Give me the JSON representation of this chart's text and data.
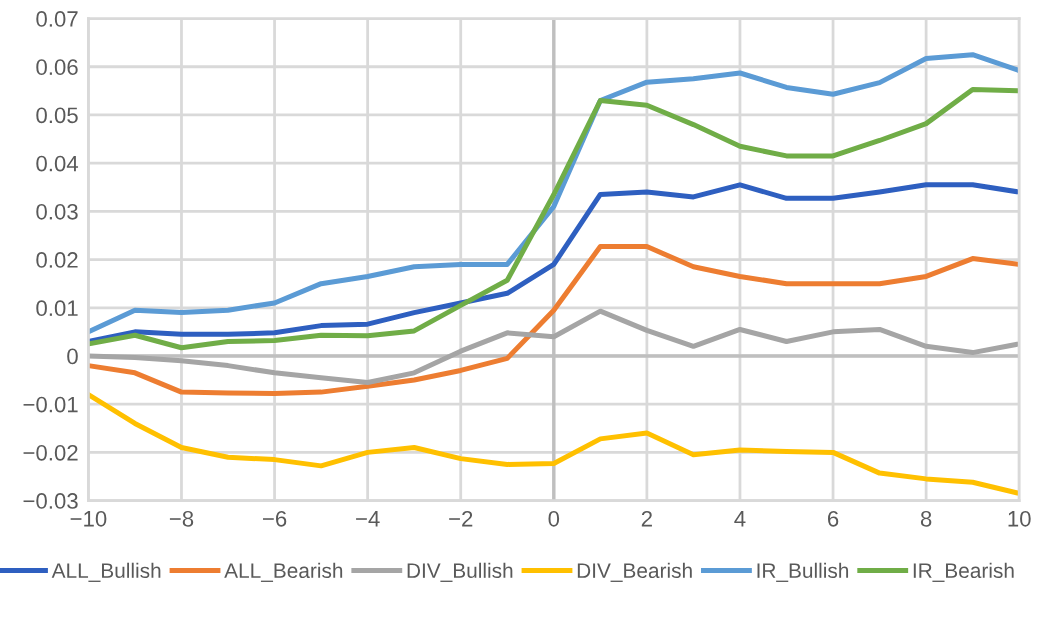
{
  "chart_data": {
    "type": "line",
    "x": [
      -10,
      -9,
      -8,
      -7,
      -6,
      -5,
      -4,
      -3,
      -2,
      -1,
      0,
      1,
      2,
      3,
      4,
      5,
      6,
      7,
      8,
      9,
      10
    ],
    "series": [
      {
        "name": "ALL_Bullish",
        "color": "#2e5fc0",
        "values": [
          0.003,
          0.005,
          0.0045,
          0.0045,
          0.0048,
          0.0063,
          0.0066,
          0.009,
          0.011,
          0.013,
          0.019,
          0.0335,
          0.034,
          0.033,
          0.0355,
          0.0327,
          0.0327,
          0.034,
          0.0355,
          0.0355,
          0.034
        ]
      },
      {
        "name": "ALL_Bearish",
        "color": "#ed7d31",
        "values": [
          -0.002,
          -0.0035,
          -0.0075,
          -0.0077,
          -0.0078,
          -0.0075,
          -0.0063,
          -0.005,
          -0.003,
          -0.0005,
          0.0095,
          0.0227,
          0.0227,
          0.0185,
          0.0165,
          0.015,
          0.015,
          0.015,
          0.0165,
          0.0202,
          0.019
        ]
      },
      {
        "name": "DIV_Bullish",
        "color": "#a5a5a5",
        "values": [
          0.0,
          -0.0003,
          -0.001,
          -0.002,
          -0.0035,
          -0.0045,
          -0.0055,
          -0.0035,
          0.001,
          0.0048,
          0.004,
          0.0093,
          0.0053,
          0.002,
          0.0055,
          0.003,
          0.005,
          0.0055,
          0.002,
          0.0007,
          0.0025
        ]
      },
      {
        "name": "DIV_Bearish",
        "color": "#ffc000",
        "values": [
          -0.008,
          -0.014,
          -0.019,
          -0.021,
          -0.0215,
          -0.0228,
          -0.02,
          -0.019,
          -0.0213,
          -0.0225,
          -0.0223,
          -0.0172,
          -0.016,
          -0.0205,
          -0.0195,
          -0.0198,
          -0.02,
          -0.0243,
          -0.0255,
          -0.0262,
          -0.0285
        ]
      },
      {
        "name": "IR_Bullish",
        "color": "#5b9bd5",
        "values": [
          0.005,
          0.0095,
          0.009,
          0.0095,
          0.011,
          0.015,
          0.0165,
          0.0185,
          0.019,
          0.019,
          0.031,
          0.053,
          0.0568,
          0.0575,
          0.0587,
          0.0557,
          0.0543,
          0.0567,
          0.0617,
          0.0625,
          0.0592
        ]
      },
      {
        "name": "IR_Bearish",
        "color": "#70ad47",
        "values": [
          0.0025,
          0.0043,
          0.0017,
          0.003,
          0.0032,
          0.0043,
          0.0042,
          0.0052,
          0.0105,
          0.0157,
          0.0335,
          0.053,
          0.052,
          0.048,
          0.0435,
          0.0415,
          0.0415,
          0.0447,
          0.0482,
          0.0553,
          0.055
        ]
      }
    ],
    "xlim": [
      -10,
      10
    ],
    "xticks": [
      -10,
      -8,
      -6,
      -4,
      -2,
      0,
      2,
      4,
      6,
      8,
      10
    ],
    "ylim": [
      -0.03,
      0.07
    ],
    "yticks": [
      -0.03,
      -0.02,
      -0.01,
      0,
      0.01,
      0.02,
      0.03,
      0.04,
      0.05,
      0.06,
      0.07
    ],
    "grid": true,
    "legend": "bottom",
    "marker": "none",
    "line_style": "solid"
  }
}
